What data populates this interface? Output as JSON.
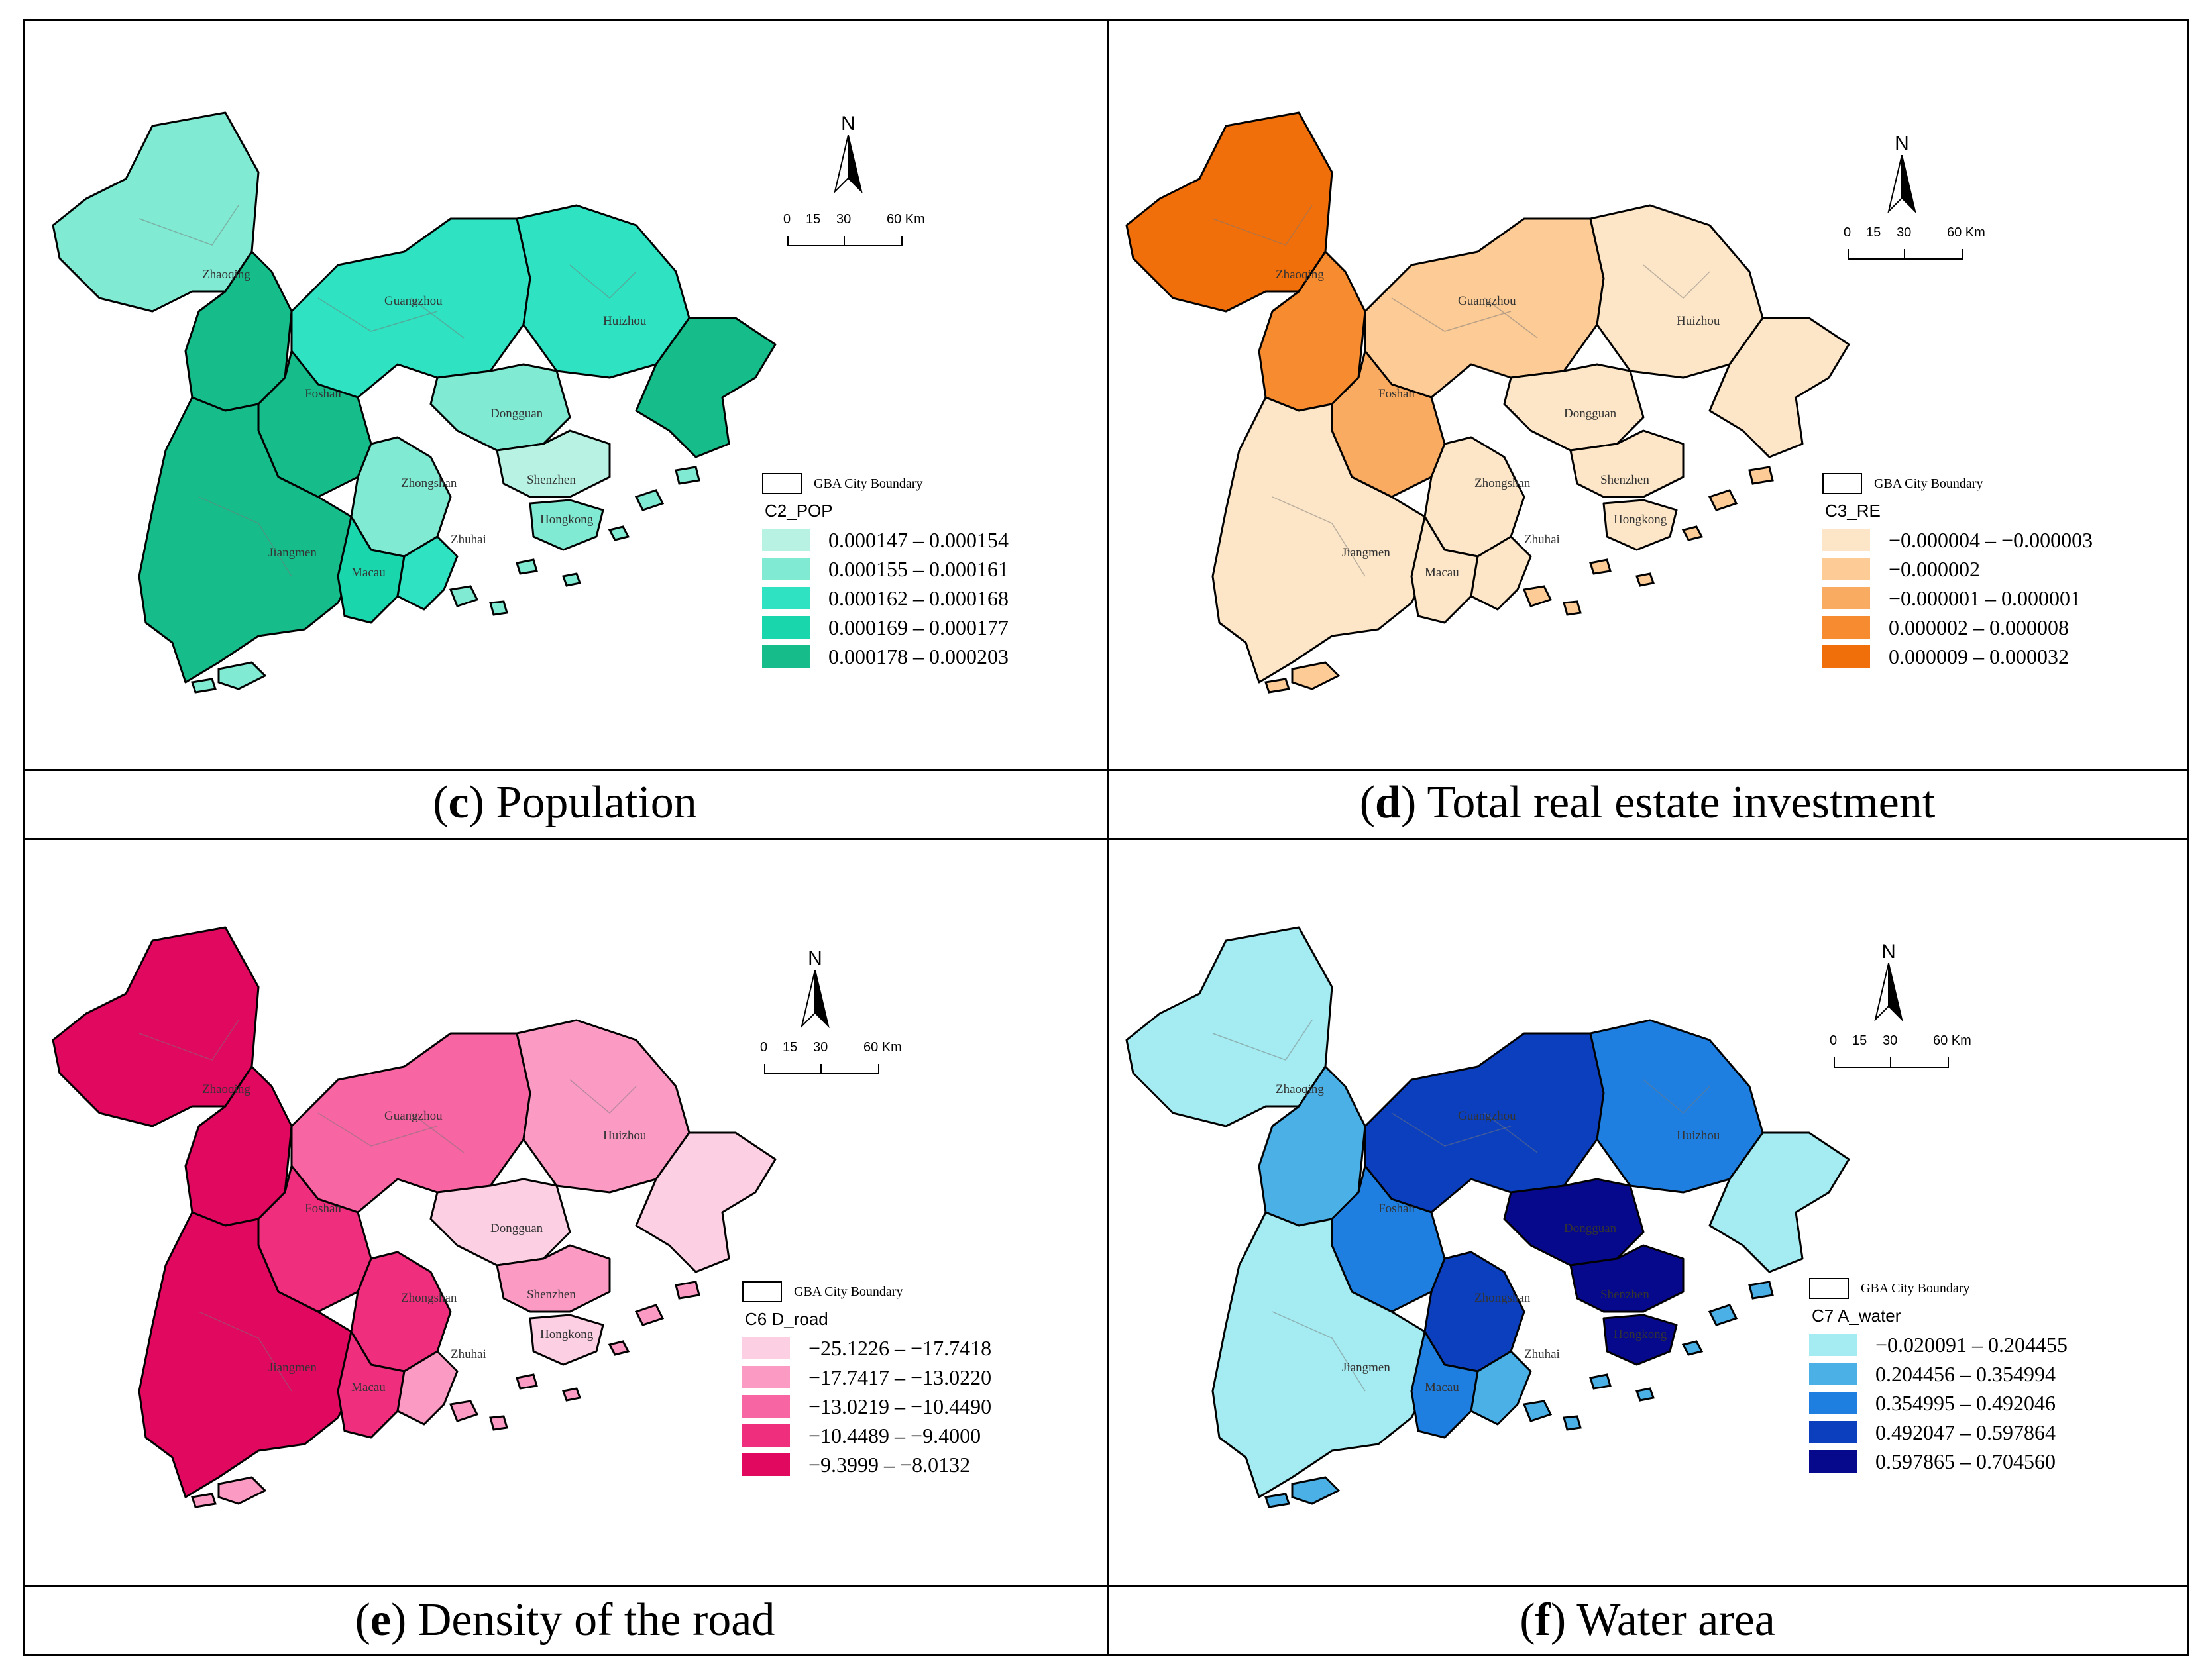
{
  "boundary_label": "GBA City Boundary",
  "north_label": "N",
  "scale_ticks": [
    "0",
    "15",
    "30",
    "60 Km"
  ],
  "city_labels": [
    "Zhaoqing",
    "Guangzhou",
    "Huizhou",
    "Foshan",
    "Dongguan",
    "Zhongshan",
    "Shenzhen",
    "Hongkong",
    "Jiangmen",
    "Macau",
    "Zhuhai"
  ],
  "panels": [
    {
      "caption_letter": "c",
      "caption_text": " Population",
      "field_name": "C2_POP",
      "classes": [
        {
          "label": "0.000147  –  0.000154",
          "color": "#b7f2e2"
        },
        {
          "label": "0.000155  –  0.000161",
          "color": "#80ead2"
        },
        {
          "label": "0.000162  –  0.000168",
          "color": "#2fe2c2"
        },
        {
          "label": "0.000169  –  0.000177",
          "color": "#1ad6ad"
        },
        {
          "label": "0.000178  –  0.000203",
          "color": "#16bd8a"
        }
      ],
      "region_class": {
        "Zhaoqing": 1,
        "ZhaoqingE": 4,
        "Guangzhou": 2,
        "Huizhou": 2,
        "HuizhouE": 4,
        "Foshan": 4,
        "Dongguan": 1,
        "Zhongshan": 1,
        "Shenzhen": 0,
        "Hongkong": 1,
        "Jiangmen": 4,
        "Macau": 3,
        "Zhuhai": 2
      }
    },
    {
      "caption_letter": "d",
      "caption_text": " Total real estate investment",
      "field_name": "C3_RE",
      "classes": [
        {
          "label": "−0.000004  –  −0.000003",
          "color": "#fde6c7"
        },
        {
          "label": "−0.000002",
          "color": "#fccb96"
        },
        {
          "label": "−0.000001  –  0.000001",
          "color": "#f9ab61"
        },
        {
          "label": "0.000002  –  0.000008",
          "color": "#f68b2f"
        },
        {
          "label": "0.000009  –  0.000032",
          "color": "#f16f0b"
        }
      ],
      "region_class": {
        "Zhaoqing": 4,
        "ZhaoqingE": 3,
        "Guangzhou": 1,
        "Huizhou": 0,
        "HuizhouE": 0,
        "Foshan": 2,
        "Dongguan": 0,
        "Zhongshan": 0,
        "Shenzhen": 0,
        "Hongkong": 0,
        "Jiangmen": 0,
        "Macau": 0,
        "Zhuhai": 0
      }
    },
    {
      "caption_letter": "e",
      "caption_text": " Density of the road",
      "field_name": "C6 D_road",
      "classes": [
        {
          "label": "−25.1226  –  −17.7418",
          "color": "#fdcfe3"
        },
        {
          "label": "−17.7417  –  −13.0220",
          "color": "#fb9bc4"
        },
        {
          "label": "−13.0219  –  −10.4490",
          "color": "#f765a2"
        },
        {
          "label": "−10.4489  –  −9.4000",
          "color": "#ef2f7d"
        },
        {
          "label": "−9.3999  –  −8.0132",
          "color": "#e0085f"
        }
      ],
      "region_class": {
        "Zhaoqing": 4,
        "ZhaoqingE": 4,
        "Guangzhou": 2,
        "Huizhou": 1,
        "HuizhouE": 0,
        "Foshan": 3,
        "Dongguan": 0,
        "Zhongshan": 3,
        "Shenzhen": 1,
        "Hongkong": 0,
        "Jiangmen": 4,
        "Macau": 3,
        "Zhuhai": 1
      }
    },
    {
      "caption_letter": "f",
      "caption_text": " Water area",
      "field_name": "C7 A_water",
      "classes": [
        {
          "label": "−0.020091  –  0.204455",
          "color": "#a4ecf1"
        },
        {
          "label": "0.204456  –  0.354994",
          "color": "#4ab0e6"
        },
        {
          "label": "0.354995  –  0.492046",
          "color": "#1f7fe0"
        },
        {
          "label": "0.492047  –  0.597864",
          "color": "#0b3fbd"
        },
        {
          "label": "0.597865  –  0.704560",
          "color": "#07098c"
        }
      ],
      "region_class": {
        "Zhaoqing": 0,
        "ZhaoqingE": 1,
        "Guangzhou": 3,
        "Huizhou": 2,
        "HuizhouE": 0,
        "Foshan": 2,
        "Dongguan": 4,
        "Zhongshan": 3,
        "Shenzhen": 4,
        "Hongkong": 4,
        "Jiangmen": 0,
        "Macau": 2,
        "Zhuhai": 1
      }
    }
  ]
}
